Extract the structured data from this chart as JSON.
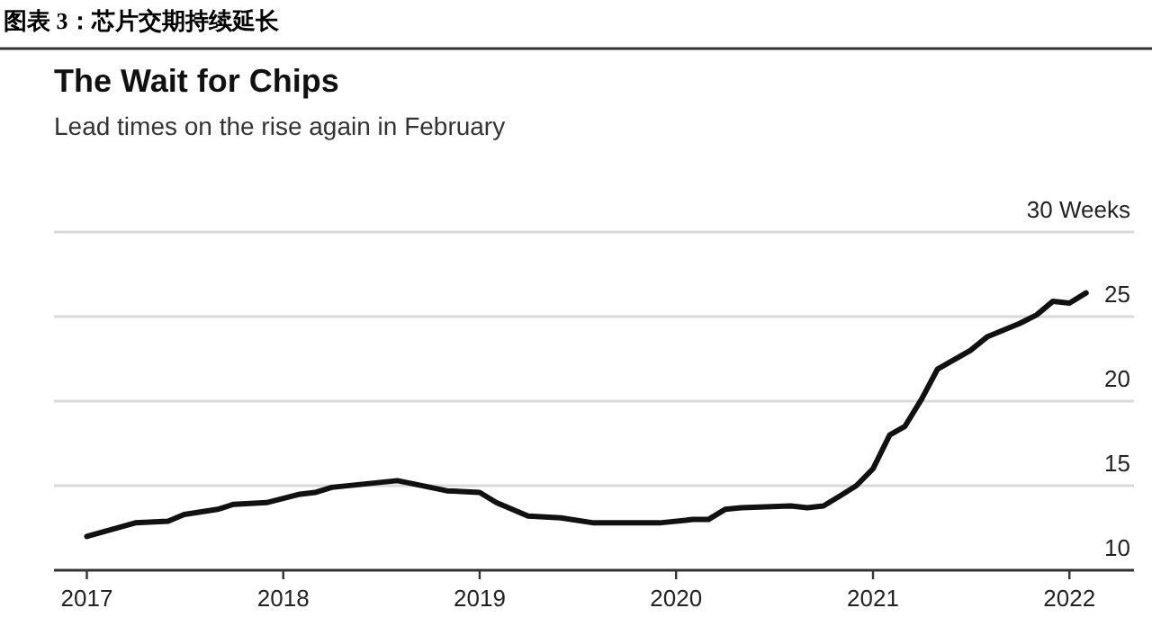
{
  "chart_data": {
    "type": "line",
    "title": "The Wait for Chips",
    "subtitle": "Lead times on the rise again in February",
    "annotations": [
      "图表 3：芯片交期持续延长"
    ],
    "x": [
      "2017-01",
      "2017-04",
      "2017-06",
      "2017-07",
      "2017-09",
      "2017-10",
      "2017-12",
      "2018-02",
      "2018-03",
      "2018-04",
      "2018-06",
      "2018-08",
      "2018-09",
      "2018-11",
      "2019-01",
      "2019-02",
      "2019-04",
      "2019-06",
      "2019-08",
      "2019-10",
      "2019-12",
      "2020-02",
      "2020-03",
      "2020-04",
      "2020-05",
      "2020-08",
      "2020-09",
      "2020-10",
      "2020-11",
      "2020-12",
      "2021-01",
      "2021-02",
      "2021-03",
      "2021-04",
      "2021-05",
      "2021-07",
      "2021-08",
      "2021-10",
      "2021-11",
      "2021-12",
      "2022-01",
      "2022-02"
    ],
    "series": [
      {
        "color": "#111111",
        "values": [
          12.0,
          12.8,
          12.9,
          13.3,
          13.6,
          13.9,
          14.0,
          14.5,
          14.6,
          14.9,
          15.1,
          15.3,
          15.1,
          14.7,
          14.6,
          14.0,
          13.2,
          13.1,
          12.8,
          12.8,
          12.8,
          13.0,
          13.0,
          13.6,
          13.7,
          13.8,
          13.7,
          13.8,
          14.4,
          15.0,
          16.0,
          18.0,
          18.5,
          20.1,
          21.9,
          23.0,
          23.8,
          24.6,
          25.1,
          25.9,
          25.8,
          26.4
        ]
      }
    ],
    "xlim": [
      "2016-11",
      "2022-05"
    ],
    "xticks": [
      "2017",
      "2018",
      "2019",
      "2020",
      "2021",
      "2022"
    ],
    "ylim": [
      10,
      30
    ],
    "yticks": [
      10,
      15,
      20,
      25,
      {
        "value": 30,
        "label": "30 Weeks"
      }
    ],
    "grid": "y",
    "marker": "none",
    "line_style": "solid"
  }
}
